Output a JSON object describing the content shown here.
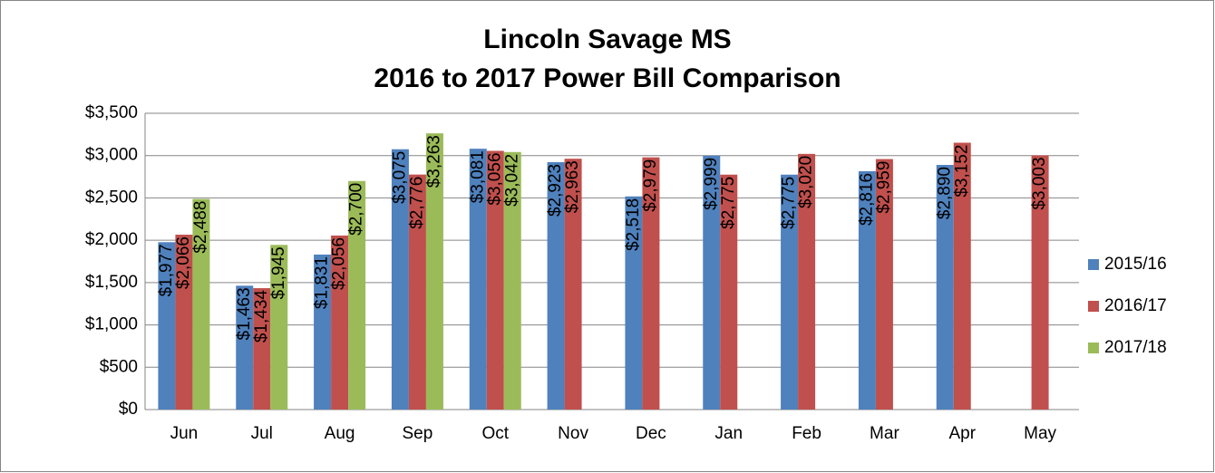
{
  "chart_data": {
    "type": "bar",
    "title": "Lincoln Savage MS",
    "subtitle": "2016 to 2017 Power Bill Comparison",
    "categories": [
      "Jun",
      "Jul",
      "Aug",
      "Sep",
      "Oct",
      "Nov",
      "Dec",
      "Jan",
      "Feb",
      "Mar",
      "Apr",
      "May"
    ],
    "series": [
      {
        "name": "2015/16",
        "color": "#4f81bd",
        "values": [
          1977,
          1463,
          1831,
          3075,
          3081,
          2923,
          2518,
          2999,
          2775,
          2816,
          2890,
          null
        ],
        "value_labels": [
          "$1,977",
          "$1,463",
          "$1,831",
          "$3,075",
          "$3,081",
          "$2,923",
          "$2,518",
          "$2,999",
          "$2,775",
          "$2,816",
          "$2,890",
          null
        ]
      },
      {
        "name": "2016/17",
        "color": "#c0504d",
        "values": [
          2066,
          1434,
          2056,
          2776,
          3056,
          2963,
          2979,
          2775,
          3020,
          2959,
          3152,
          3003
        ],
        "value_labels": [
          "$2,066",
          "$1,434",
          "$2,056",
          "$2,776",
          "$3,056",
          "$2,963",
          "$2,979",
          "$2,775",
          "$3,020",
          "$2,959",
          "$3,152",
          "$3,003"
        ]
      },
      {
        "name": "2017/18",
        "color": "#9bbb59",
        "values": [
          2488,
          1945,
          2700,
          3263,
          3042,
          null,
          null,
          null,
          null,
          null,
          null,
          null
        ],
        "value_labels": [
          "$2,488",
          "$1,945",
          "$2,700",
          "$3,263",
          "$3,042",
          null,
          null,
          null,
          null,
          null,
          null,
          null
        ]
      }
    ],
    "ylim": [
      0,
      3500
    ],
    "yticks": [
      {
        "value": 0,
        "label": "$0"
      },
      {
        "value": 500,
        "label": "$500"
      },
      {
        "value": 1000,
        "label": "$1,000"
      },
      {
        "value": 1500,
        "label": "$1,500"
      },
      {
        "value": 2000,
        "label": "$2,000"
      },
      {
        "value": 2500,
        "label": "$2,500"
      },
      {
        "value": 3000,
        "label": "$3,000"
      },
      {
        "value": 3500,
        "label": "$3,500"
      }
    ],
    "grid": true,
    "legend": "right"
  }
}
